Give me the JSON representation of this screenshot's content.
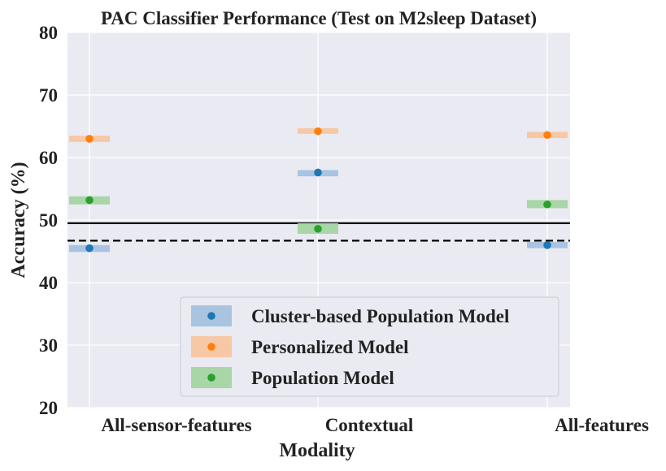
{
  "chart_data": {
    "type": "scatter",
    "title": "PAC Classifier Performance (Test on M2sleep Dataset)",
    "xlabel": "Modality",
    "ylabel": "Accuracy (%)",
    "categories": [
      "All-sensor-features",
      "Contextual",
      "All-features"
    ],
    "ylim": [
      20,
      80
    ],
    "yticks": [
      "20",
      "30",
      "40",
      "50",
      "60",
      "70",
      "80"
    ],
    "grid": true,
    "legend_position": "lower-right",
    "series": [
      {
        "name": "Cluster-based Population Model",
        "color": "#1f77b4",
        "band_color": "#a9c4e0",
        "values": [
          45.5,
          57.6,
          46.0
        ],
        "band": [
          [
            44.9,
            46.0
          ],
          [
            57.0,
            58.0
          ],
          [
            45.5,
            46.5
          ]
        ]
      },
      {
        "name": "Personalized Model",
        "color": "#ff7f0e",
        "band_color": "#f6c8a5",
        "values": [
          63.0,
          64.2,
          63.6
        ],
        "band": [
          [
            62.5,
            63.5
          ],
          [
            63.8,
            64.7
          ],
          [
            63.1,
            64.1
          ]
        ]
      },
      {
        "name": "Population Model",
        "color": "#2ca02c",
        "band_color": "#a8d6a7",
        "values": [
          53.2,
          48.6,
          52.5
        ],
        "band": [
          [
            52.5,
            53.8
          ],
          [
            47.8,
            49.5
          ],
          [
            51.9,
            53.2
          ]
        ]
      }
    ],
    "reference_lines": [
      {
        "style": "solid",
        "y": 49.5
      },
      {
        "style": "dashed",
        "y": 46.7
      }
    ]
  }
}
